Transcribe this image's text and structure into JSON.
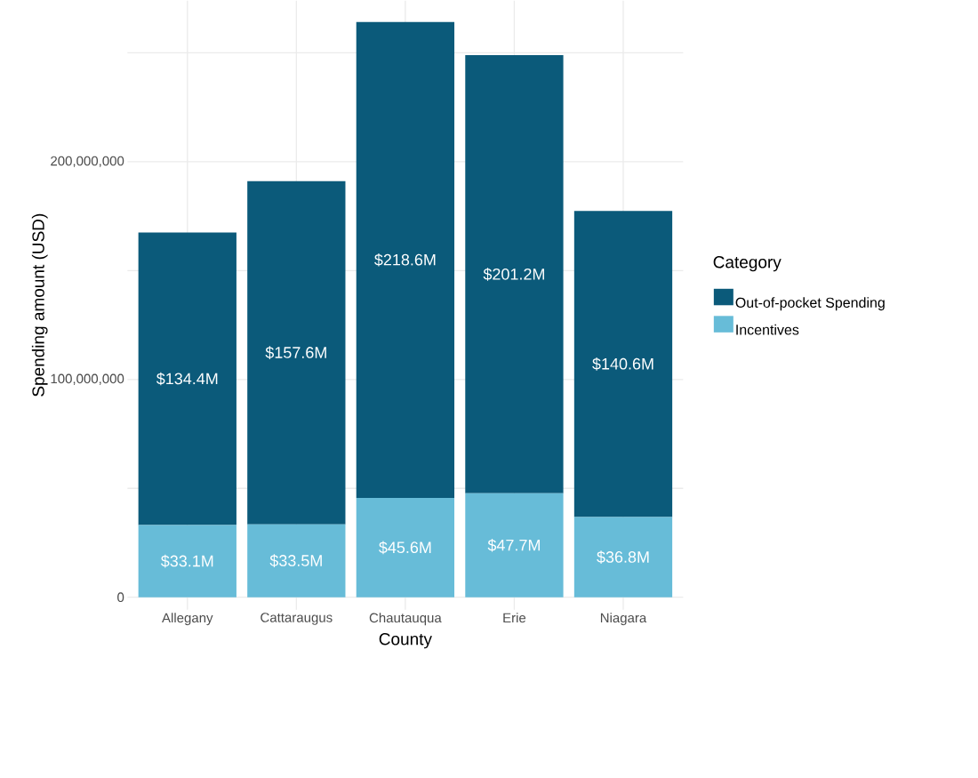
{
  "chart_data": {
    "type": "bar",
    "stacked": true,
    "xlabel": "County",
    "ylabel": "Spending amount (USD)",
    "legend_title": "Category",
    "legend": "right",
    "grid": true,
    "categories": [
      "Allegany",
      "Cattaraugus",
      "Chautauqua",
      "Erie",
      "Niagara"
    ],
    "series": [
      {
        "name": "Incentives",
        "color": "#67bcd8",
        "values": [
          33100000,
          33500000,
          45600000,
          47700000,
          36800000
        ],
        "value_labels": [
          "$33.1M",
          "$33.5M",
          "$45.6M",
          "$47.7M",
          "$36.8M"
        ]
      },
      {
        "name": "Out-of-pocket Spending",
        "color": "#0b5a7a",
        "values": [
          134400000,
          157600000,
          218600000,
          201200000,
          140600000
        ],
        "value_labels": [
          "$134.4M",
          "$157.6M",
          "$218.6M",
          "$201.2M",
          "$140.6M"
        ]
      }
    ],
    "ylim": [
      -5700000,
      274000000
    ],
    "yticks": [
      0,
      {
        "value": 50000000,
        "label": null
      },
      {
        "value": 100000000,
        "label": "100,000,000"
      },
      {
        "value": 150000000,
        "label": null
      },
      {
        "value": 200000000,
        "label": "200,000,000"
      },
      {
        "value": 250000000,
        "label": null
      }
    ]
  }
}
